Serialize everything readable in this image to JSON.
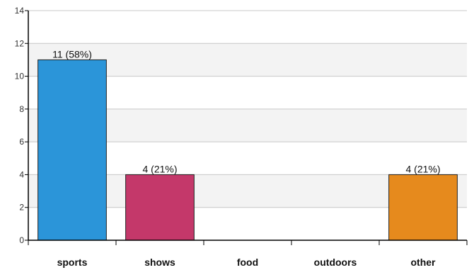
{
  "chart_data": {
    "type": "bar",
    "title": "",
    "xlabel": "",
    "ylabel": "",
    "categories": [
      "sports",
      "shows",
      "food",
      "outdoors",
      "other"
    ],
    "values": [
      11,
      4,
      0,
      0,
      4
    ],
    "data_labels": [
      "11 (58%)",
      "4 (21%)",
      "",
      "",
      "4 (21%)"
    ],
    "colors": [
      "#2b95d9",
      "#c4386a",
      "#888888",
      "#888888",
      "#e68a1d"
    ],
    "ylim": [
      0,
      14
    ],
    "yticks": [
      0,
      2,
      4,
      6,
      8,
      10,
      12,
      14
    ],
    "grid": true,
    "band_fill": "#f3f3f3",
    "legend": "none"
  }
}
